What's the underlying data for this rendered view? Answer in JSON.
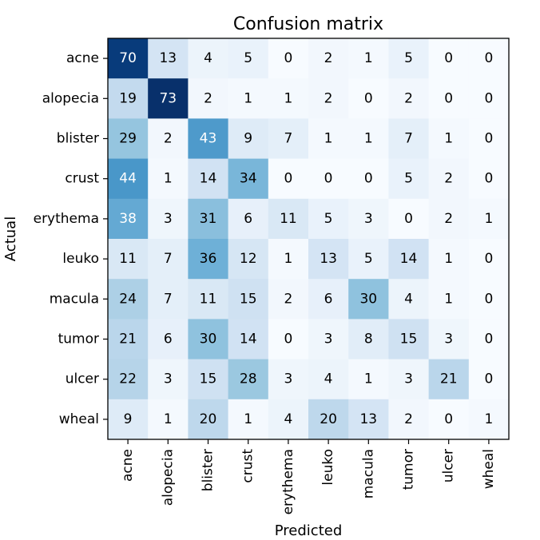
{
  "chart_data": {
    "type": "heatmap",
    "title": "Confusion matrix",
    "xlabel": "Predicted",
    "ylabel": "Actual",
    "categories": [
      "acne",
      "alopecia",
      "blister",
      "crust",
      "erythema",
      "leuko",
      "macula",
      "tumor",
      "ulcer",
      "wheal"
    ],
    "values": [
      [
        70,
        13,
        4,
        5,
        0,
        2,
        1,
        5,
        0,
        0
      ],
      [
        19,
        73,
        2,
        1,
        1,
        2,
        0,
        2,
        0,
        0
      ],
      [
        29,
        2,
        43,
        9,
        7,
        1,
        1,
        7,
        1,
        0
      ],
      [
        44,
        1,
        14,
        34,
        0,
        0,
        0,
        5,
        2,
        0
      ],
      [
        38,
        3,
        31,
        6,
        11,
        5,
        3,
        0,
        2,
        1
      ],
      [
        11,
        7,
        36,
        12,
        1,
        13,
        5,
        14,
        1,
        0
      ],
      [
        24,
        7,
        11,
        15,
        2,
        6,
        30,
        4,
        1,
        0
      ],
      [
        21,
        6,
        30,
        14,
        0,
        3,
        8,
        15,
        3,
        0
      ],
      [
        22,
        3,
        15,
        28,
        3,
        4,
        1,
        3,
        21,
        0
      ],
      [
        9,
        1,
        20,
        1,
        4,
        20,
        13,
        2,
        0,
        1
      ]
    ],
    "colormap": "Blues",
    "vmin": 0,
    "vmax": 73,
    "grid": false,
    "legend": "none"
  }
}
